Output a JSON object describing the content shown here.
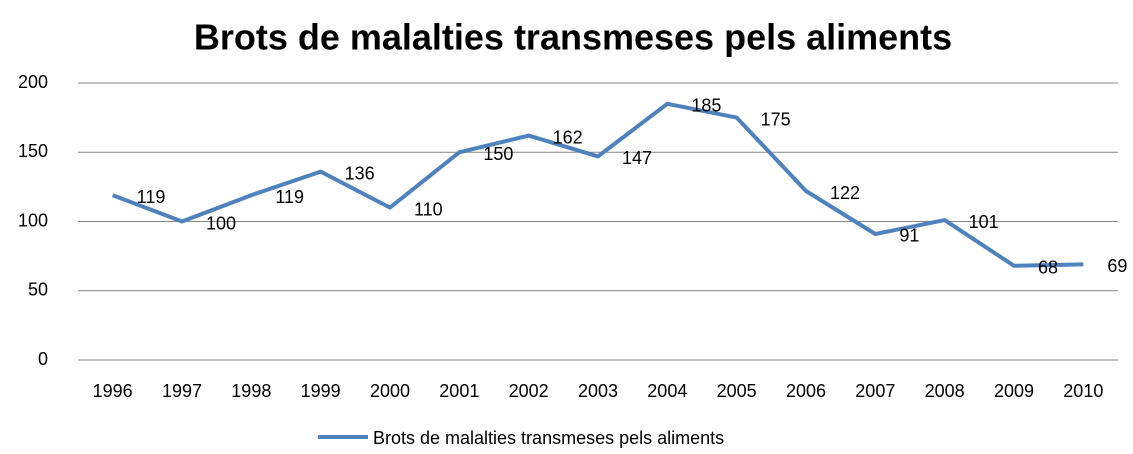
{
  "chart_data": {
    "type": "line",
    "title": "Brots de malalties transmeses pels aliments",
    "categories": [
      "1996",
      "1997",
      "1998",
      "1999",
      "2000",
      "2001",
      "2002",
      "2003",
      "2004",
      "2005",
      "2006",
      "2007",
      "2008",
      "2009",
      "2010"
    ],
    "series": [
      {
        "name": "Brots de malalties transmeses pels aliments",
        "color": "#4f81bd",
        "values": [
          119,
          100,
          119,
          136,
          110,
          150,
          162,
          147,
          185,
          175,
          122,
          91,
          101,
          68,
          69
        ]
      }
    ],
    "ylim": [
      0,
      200
    ],
    "yticks": [
      0,
      50,
      100,
      150,
      200
    ],
    "grid": true,
    "data_labels": true,
    "legend": "bottom"
  }
}
